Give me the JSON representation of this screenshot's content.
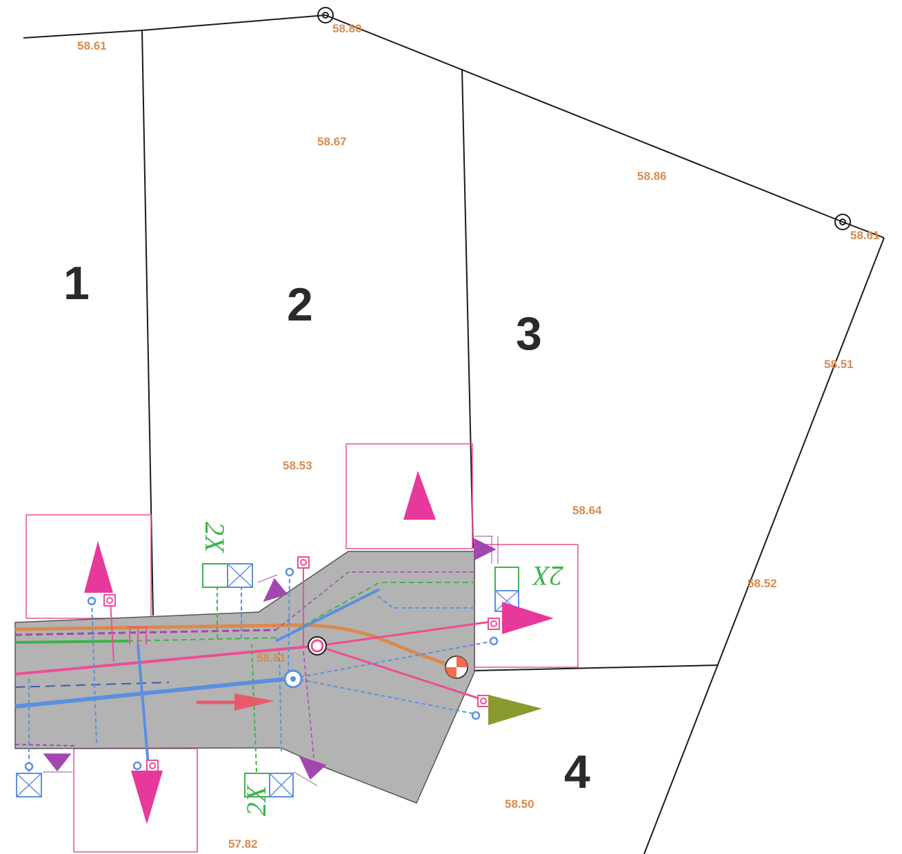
{
  "lots": [
    {
      "number": "1"
    },
    {
      "number": "2"
    },
    {
      "number": "3"
    },
    {
      "number": "4"
    }
  ],
  "spot_heights": [
    {
      "value": "58.61"
    },
    {
      "value": "58.80"
    },
    {
      "value": "58.67"
    },
    {
      "value": "58.86"
    },
    {
      "value": "58.61"
    },
    {
      "value": "58.51"
    },
    {
      "value": "58.53"
    },
    {
      "value": "58.64"
    },
    {
      "value": "58.52"
    },
    {
      "value": "58.81"
    },
    {
      "value": "58.50"
    },
    {
      "value": "57.82"
    }
  ],
  "connection_labels": [
    {
      "text": "2X"
    },
    {
      "text": "2X"
    },
    {
      "text": "2X"
    }
  ],
  "colors": {
    "boundary": "#1a1a1a",
    "road_surface": "#b3b3b3",
    "spot_height_text": "#d98a4e",
    "access_arrow": "#e6399b",
    "drain_marker": "#a347b0",
    "sewer_line": "#5b8fe0",
    "gas_line": "#d98a4e",
    "electric_line": "#3cb34a",
    "water_line": "#ee4d94",
    "outfall_arrow": "#8a9a2e",
    "hydrant": "#f26a4f"
  }
}
